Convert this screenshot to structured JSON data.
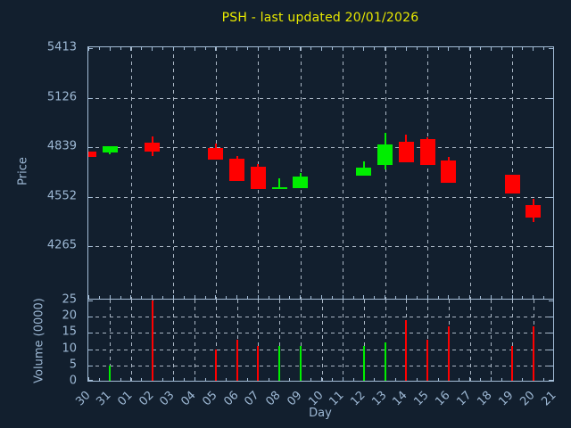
{
  "title": "PSH - last updated 20/01/2026",
  "colors": {
    "background": "#121f2e",
    "frame": "#a3bcd6",
    "grid": "#aab6c4",
    "title_text": "#e8e800",
    "axis_text": "#9db8d4",
    "up": "#00ee00",
    "down": "#ff0000"
  },
  "price_axis": {
    "label": "Price",
    "ticks": [
      5413,
      5126,
      4839,
      4552,
      4265
    ],
    "min": 3956,
    "max": 5413
  },
  "volume_axis": {
    "label": "Volume (0000)",
    "ticks": [
      25,
      20,
      15,
      10,
      5,
      0
    ],
    "min": 0,
    "max": 25
  },
  "x_axis": {
    "label": "Day",
    "days": [
      "30",
      "31",
      "01",
      "02",
      "03",
      "04",
      "05",
      "06",
      "07",
      "08",
      "09",
      "10",
      "11",
      "12",
      "13",
      "14",
      "15",
      "16",
      "17",
      "18",
      "19",
      "20",
      "21"
    ]
  },
  "chart_data": {
    "type": "candlestick",
    "title": "PSH - last updated 20/01/2026",
    "xlabel": "Day",
    "ylabel": "Price",
    "y2label": "Volume (0000)",
    "price_range": [
      3956,
      5413
    ],
    "volume_range": [
      0,
      25
    ],
    "grid": "on",
    "candles": [
      {
        "day": "30",
        "open": 4814,
        "high": 4814,
        "low": 4781,
        "close": 4781,
        "dir": "down"
      },
      {
        "day": "31",
        "open": 4808,
        "high": 4844,
        "low": 4797,
        "close": 4844,
        "dir": "up"
      },
      {
        "day": "02",
        "open": 4863,
        "high": 4900,
        "low": 4790,
        "close": 4816,
        "dir": "down"
      },
      {
        "day": "05",
        "open": 4836,
        "high": 4858,
        "low": 4766,
        "close": 4766,
        "dir": "down"
      },
      {
        "day": "06",
        "open": 4773,
        "high": 4790,
        "low": 4644,
        "close": 4644,
        "dir": "down"
      },
      {
        "day": "07",
        "open": 4727,
        "high": 4742,
        "low": 4595,
        "close": 4595,
        "dir": "down"
      },
      {
        "day": "08",
        "open": 4600,
        "high": 4659,
        "low": 4600,
        "close": 4607,
        "dir": "up"
      },
      {
        "day": "09",
        "open": 4603,
        "high": 4689,
        "low": 4603,
        "close": 4671,
        "dir": "up"
      },
      {
        "day": "12",
        "open": 4675,
        "high": 4759,
        "low": 4675,
        "close": 4722,
        "dir": "up"
      },
      {
        "day": "13",
        "open": 4734,
        "high": 4920,
        "low": 4709,
        "close": 4853,
        "dir": "up"
      },
      {
        "day": "14",
        "open": 4870,
        "high": 4912,
        "low": 4753,
        "close": 4753,
        "dir": "down"
      },
      {
        "day": "15",
        "open": 4885,
        "high": 4895,
        "low": 4737,
        "close": 4737,
        "dir": "down"
      },
      {
        "day": "16",
        "open": 4760,
        "high": 4785,
        "low": 4632,
        "close": 4632,
        "dir": "down"
      },
      {
        "day": "19",
        "open": 4678,
        "high": 4678,
        "low": 4569,
        "close": 4569,
        "dir": "down"
      },
      {
        "day": "20",
        "open": 4502,
        "high": 4541,
        "low": 4405,
        "close": 4429,
        "dir": "down"
      }
    ],
    "volume": [
      {
        "day": "31",
        "value": 5,
        "dir": "up"
      },
      {
        "day": "02",
        "value": 25,
        "dir": "down"
      },
      {
        "day": "05",
        "value": 10,
        "dir": "down"
      },
      {
        "day": "06",
        "value": 13,
        "dir": "down"
      },
      {
        "day": "07",
        "value": 11,
        "dir": "down"
      },
      {
        "day": "08",
        "value": 11,
        "dir": "up"
      },
      {
        "day": "09",
        "value": 11,
        "dir": "up"
      },
      {
        "day": "12",
        "value": 11,
        "dir": "up"
      },
      {
        "day": "13",
        "value": 12,
        "dir": "up"
      },
      {
        "day": "14",
        "value": 19,
        "dir": "down"
      },
      {
        "day": "15",
        "value": 13,
        "dir": "down"
      },
      {
        "day": "16",
        "value": 17,
        "dir": "down"
      },
      {
        "day": "19",
        "value": 11,
        "dir": "down"
      },
      {
        "day": "20",
        "value": 17,
        "dir": "down"
      }
    ]
  }
}
